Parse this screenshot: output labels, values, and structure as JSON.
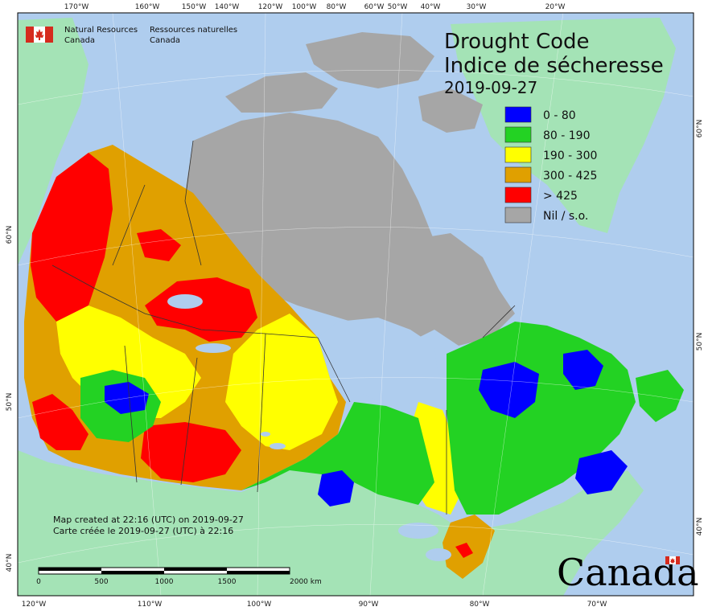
{
  "map": {
    "title_en": "Drought Code",
    "title_fr": "Indice de sécheresse",
    "date": "2019-09-27",
    "org_en_line1": "Natural Resources",
    "org_en_line2": "Canada",
    "org_fr_line1": "Ressources naturelles",
    "org_fr_line2": "Canada",
    "credit_en": "Map created at 22:16 (UTC) on 2019-09-27",
    "credit_fr": "Carte créée le 2019-09-27 (UTC) à 22:16",
    "wordmark": "Canada",
    "colors": {
      "ocean": "#afcdee",
      "foreign_land": "#a4e3b6",
      "no_data": "#a6a6a6",
      "class_0_80": "#0000ff",
      "class_80_190": "#23d223",
      "class_190_300": "#ffff00",
      "class_300_425": "#e0a000",
      "class_gt_425": "#ff0000",
      "flag_red": "#d52b1e"
    },
    "legend": [
      {
        "label": "0 - 80",
        "color": "#0000ff"
      },
      {
        "label": "80 - 190",
        "color": "#23d223"
      },
      {
        "label": "190 - 300",
        "color": "#ffff00"
      },
      {
        "label": "300 - 425",
        "color": "#e0a000"
      },
      {
        "label": "> 425",
        "color": "#ff0000"
      },
      {
        "label": "Nil / s.o.",
        "color": "#a6a6a6"
      }
    ],
    "top_ticks": [
      "170°W",
      "160°W",
      "150°W",
      "140°W",
      "120°W",
      "100°W",
      "80°W",
      "60°W",
      "50°W",
      "40°W",
      "30°W",
      "20°W"
    ],
    "bottom_ticks": [
      "120°W",
      "110°W",
      "100°W",
      "90°W",
      "80°W",
      "70°W"
    ],
    "left_ticks": [
      "60°N",
      "50°N",
      "40°N"
    ],
    "right_ticks": [
      "60°N",
      "50°N",
      "40°N"
    ],
    "scale_labels": [
      "0",
      "500",
      "1000",
      "1500",
      "2000 km"
    ]
  }
}
